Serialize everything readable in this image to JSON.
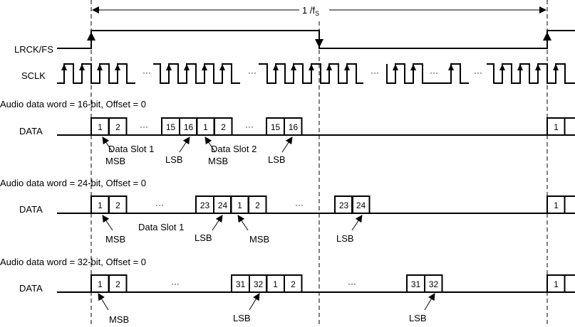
{
  "period_label": {
    "main": "1 /f",
    "sub": "S"
  },
  "signals": {
    "lrck": "LRCK/FS",
    "sclk": "SCLK",
    "data": "DATA"
  },
  "ellipsis": "···",
  "rows": [
    {
      "heading": "Audio data word = 16-bit, Offset = 0",
      "boxes": [
        "1",
        "2",
        "15",
        "16",
        "1",
        "2",
        "15",
        "16",
        "1"
      ],
      "annotations": [
        "MSB",
        "Data Slot 1",
        "LSB",
        "MSB",
        "Data Slot 2",
        "LSB"
      ]
    },
    {
      "heading": "Audio data word = 24-bit, Offset = 0",
      "boxes": [
        "1",
        "2",
        "23",
        "24",
        "1",
        "2",
        "23",
        "24",
        "1"
      ],
      "annotations": [
        "MSB",
        "Data Slot 1",
        "LSB",
        "MSB",
        "LSB"
      ]
    },
    {
      "heading": "Audio data word = 32-bit, Offset = 0",
      "boxes": [
        "1",
        "2",
        "31",
        "32",
        "1",
        "2",
        "31",
        "32",
        "1"
      ],
      "annotations": [
        "MSB",
        "LSB",
        "LSB"
      ]
    }
  ]
}
